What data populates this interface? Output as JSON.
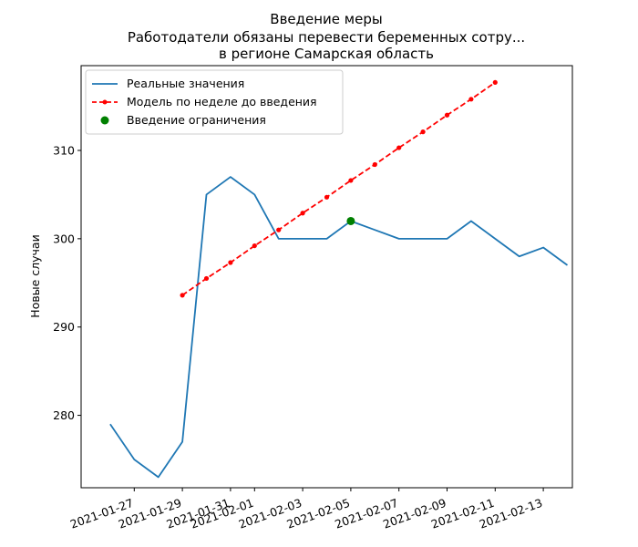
{
  "chart_data": {
    "type": "line",
    "title_lines": [
      "Введение меры",
      "Работодатели обязаны перевести беременных сотру...",
      "в регионе Самарская область"
    ],
    "xlabel": "",
    "ylabel": "Новые случаи",
    "x_ticks": [
      "2021-01-27",
      "2021-01-29",
      "2021-01-31",
      "2021-02-01",
      "2021-02-03",
      "2021-02-05",
      "2021-02-07",
      "2021-02-09",
      "2021-02-11",
      "2021-02-13"
    ],
    "y_ticks": [
      280,
      290,
      300,
      310
    ],
    "xlim": [
      "2021-01-24T19:00",
      "2021-02-14T05:00"
    ],
    "ylim": [
      271.8,
      319.6
    ],
    "legend_position": "top-left",
    "series": [
      {
        "name": "Реальные значения",
        "color": "#1f77b4",
        "style": "solid",
        "points": [
          [
            "2021-01-26",
            279
          ],
          [
            "2021-01-27",
            275
          ],
          [
            "2021-01-28",
            273
          ],
          [
            "2021-01-29",
            277
          ],
          [
            "2021-01-30",
            305
          ],
          [
            "2021-01-31",
            307
          ],
          [
            "2021-02-01",
            305
          ],
          [
            "2021-02-02",
            300
          ],
          [
            "2021-02-03",
            300
          ],
          [
            "2021-02-04",
            300
          ],
          [
            "2021-02-05",
            302
          ],
          [
            "2021-02-06",
            301
          ],
          [
            "2021-02-07",
            300
          ],
          [
            "2021-02-08",
            300
          ],
          [
            "2021-02-09",
            300
          ],
          [
            "2021-02-10",
            302
          ],
          [
            "2021-02-11",
            300
          ],
          [
            "2021-02-12",
            298
          ],
          [
            "2021-02-13",
            299
          ],
          [
            "2021-02-14",
            297
          ]
        ]
      },
      {
        "name": "Модель по неделе до введения",
        "color": "#ff0000",
        "style": "dashed-dot",
        "points": [
          [
            "2021-01-29",
            293.6
          ],
          [
            "2021-01-30",
            295.5
          ],
          [
            "2021-01-31",
            297.3
          ],
          [
            "2021-02-01",
            299.2
          ],
          [
            "2021-02-02",
            301.0
          ],
          [
            "2021-02-03",
            302.9
          ],
          [
            "2021-02-04",
            304.7
          ],
          [
            "2021-02-05",
            306.6
          ],
          [
            "2021-02-06",
            308.4
          ],
          [
            "2021-02-07",
            310.3
          ],
          [
            "2021-02-08",
            312.1
          ],
          [
            "2021-02-09",
            314.0
          ],
          [
            "2021-02-10",
            315.8
          ],
          [
            "2021-02-11",
            317.7
          ]
        ]
      },
      {
        "name": "Введение ограничения",
        "color": "#008000",
        "style": "marker",
        "points": [
          [
            "2021-02-05",
            302
          ]
        ]
      }
    ]
  }
}
